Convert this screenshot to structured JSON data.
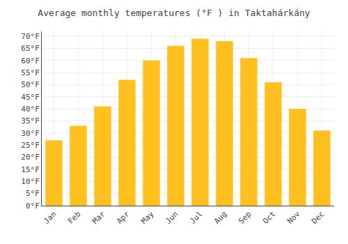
{
  "chart_data": {
    "type": "bar",
    "title": "Average monthly temperatures (°F ) in Taktahárkány",
    "categories": [
      "Jan",
      "Feb",
      "Mar",
      "Apr",
      "May",
      "Jun",
      "Jul",
      "Aug",
      "Sep",
      "Oct",
      "Nov",
      "Dec"
    ],
    "values": [
      27,
      33,
      41,
      52,
      60,
      66,
      69,
      68,
      61,
      51,
      40,
      31
    ],
    "color": "#FFC020",
    "ylim": [
      0,
      72
    ],
    "yticks": [
      {
        "value": 0,
        "label": "0°F"
      },
      {
        "value": 5,
        "label": "5°F"
      },
      {
        "value": 10,
        "label": "10°F"
      },
      {
        "value": 15,
        "label": "15°F"
      },
      {
        "value": 20,
        "label": "20°F"
      },
      {
        "value": 25,
        "label": "25°F"
      },
      {
        "value": 30,
        "label": "30°F"
      },
      {
        "value": 35,
        "label": "35°F"
      },
      {
        "value": 40,
        "label": "40°F"
      },
      {
        "value": 45,
        "label": "45°F"
      },
      {
        "value": 50,
        "label": "50°F"
      },
      {
        "value": 55,
        "label": "55°F"
      },
      {
        "value": 60,
        "label": "60°F"
      },
      {
        "value": 65,
        "label": "65°F"
      },
      {
        "value": 70,
        "label": "70°F"
      }
    ],
    "grid": true
  }
}
